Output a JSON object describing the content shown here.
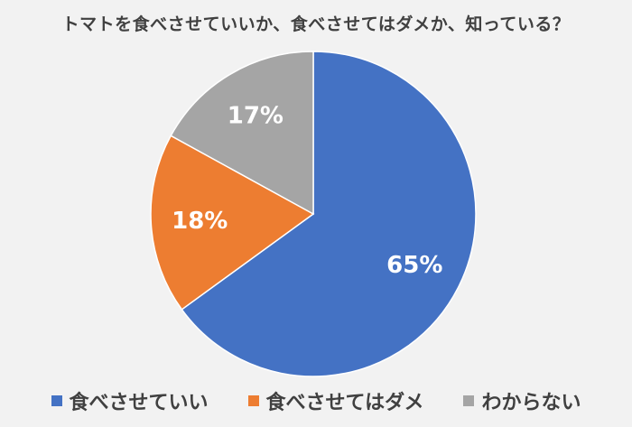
{
  "chart_data": {
    "type": "pie",
    "title": "トマトを食べさせていいか、食べさせてはダメか、知っている？",
    "categories": [
      "食べさせていい",
      "食べさせてはダメ",
      "わからない"
    ],
    "values": [
      65,
      18,
      17
    ],
    "data_labels": [
      "65%",
      "18%",
      "17%"
    ],
    "colors": [
      "#4472c4",
      "#ed7d31",
      "#a5a5a5"
    ],
    "legend_position": "bottom",
    "start_angle": "12 o'clock, clockwise"
  }
}
